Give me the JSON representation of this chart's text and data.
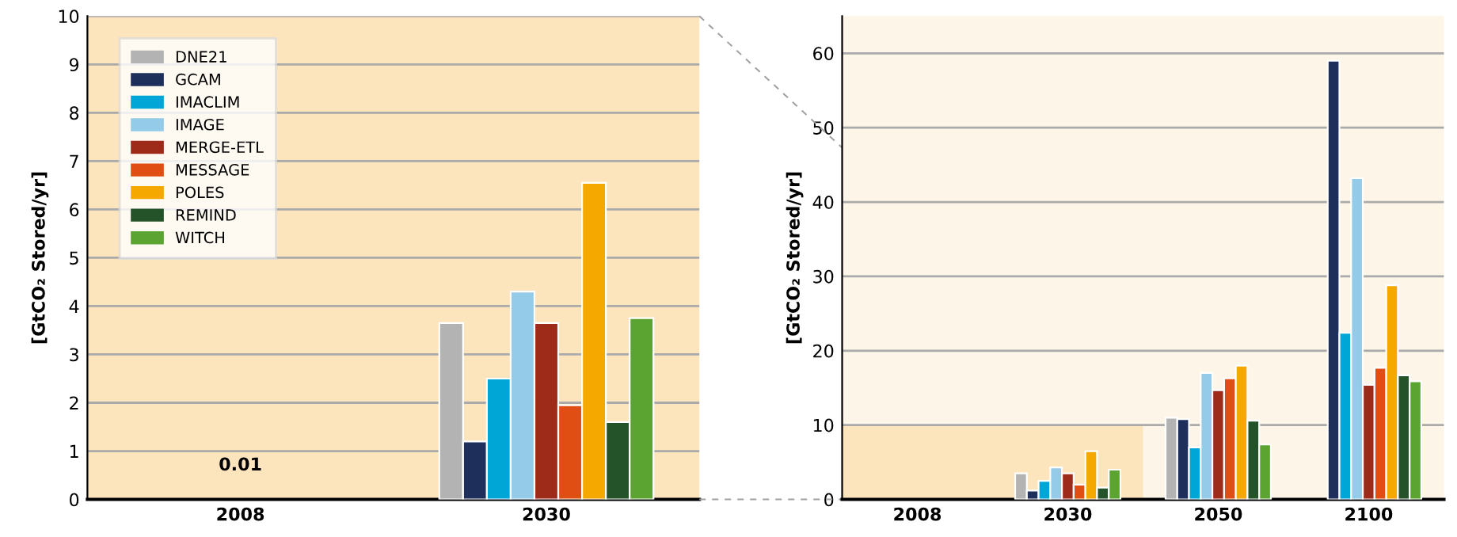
{
  "chart_data": [
    {
      "type": "bar",
      "categories": [
        "2008",
        "2030"
      ],
      "ylabel": "[GtCO₂ Stored/yr]",
      "ylim": [
        0,
        10
      ],
      "yticks": [
        0,
        1,
        2,
        3,
        4,
        5,
        6,
        7,
        8,
        9,
        10
      ],
      "grid": "y",
      "legend": "top left",
      "annotations": [
        "0.01"
      ],
      "series": [
        {
          "name": "DNE21",
          "color": "#b3b3b3",
          "values": [
            null,
            3.65
          ]
        },
        {
          "name": "GCAM",
          "color": "#1f2f5c",
          "values": [
            null,
            1.2
          ]
        },
        {
          "name": "IMACLIM",
          "color": "#00a6d6",
          "values": [
            null,
            2.5
          ]
        },
        {
          "name": "IMAGE",
          "color": "#94cbe8",
          "values": [
            null,
            4.3
          ]
        },
        {
          "name": "MERGE-ETL",
          "color": "#9e2a1a",
          "values": [
            null,
            3.65
          ]
        },
        {
          "name": "MESSAGE",
          "color": "#e04e14",
          "values": [
            null,
            1.95
          ]
        },
        {
          "name": "POLES",
          "color": "#f5a800",
          "values": [
            null,
            6.55
          ]
        },
        {
          "name": "REMIND",
          "color": "#24532a",
          "values": [
            null,
            1.6
          ]
        },
        {
          "name": "WITCH",
          "color": "#5ba431",
          "values": [
            null,
            3.75
          ]
        }
      ]
    },
    {
      "type": "bar",
      "categories": [
        "2008",
        "2030",
        "2050",
        "2100"
      ],
      "ylabel": "[GtCO₂ Stored/yr]",
      "ylim": [
        0,
        65
      ],
      "yticks": [
        0,
        10,
        20,
        30,
        40,
        50,
        60
      ],
      "grid": "y",
      "bands": [
        {
          "axis": "y",
          "from": 0,
          "to": 10,
          "color": "#fce4bc"
        }
      ],
      "series": [
        {
          "color": "#b3b3b3",
          "values": [
            null,
            3.5,
            11.0,
            null
          ]
        },
        {
          "color": "#1f2f5c",
          "values": [
            null,
            1.2,
            10.8,
            59.0
          ]
        },
        {
          "color": "#00a6d6",
          "values": [
            null,
            2.5,
            7.0,
            22.4
          ]
        },
        {
          "color": "#94cbe8",
          "values": [
            null,
            4.3,
            17.0,
            43.2
          ]
        },
        {
          "color": "#9e2a1a",
          "values": [
            null,
            3.5,
            14.7,
            15.4
          ]
        },
        {
          "color": "#e04e14",
          "values": [
            null,
            2.0,
            16.3,
            17.7
          ]
        },
        {
          "color": "#f5a800",
          "values": [
            null,
            6.5,
            18.0,
            28.8
          ]
        },
        {
          "color": "#24532a",
          "values": [
            null,
            1.6,
            10.6,
            16.7
          ]
        },
        {
          "color": "#5ba431",
          "values": [
            null,
            4.0,
            7.4,
            15.9
          ]
        }
      ]
    }
  ]
}
